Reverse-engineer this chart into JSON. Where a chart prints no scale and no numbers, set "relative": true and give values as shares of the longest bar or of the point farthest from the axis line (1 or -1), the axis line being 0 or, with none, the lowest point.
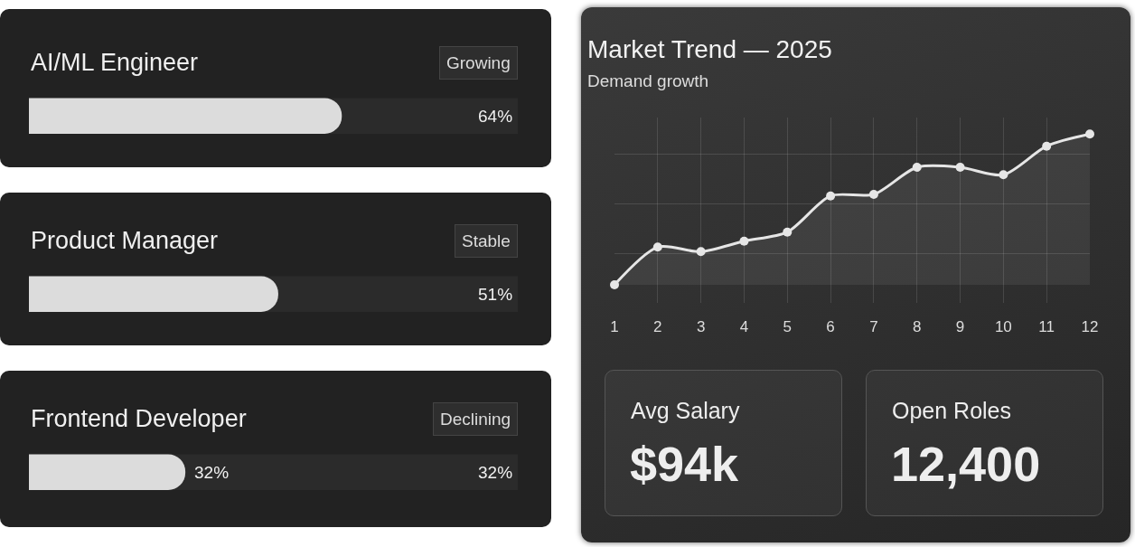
{
  "chart_data": [
    {
      "type": "bar",
      "orientation": "horizontal",
      "categories": [
        "AI/ML Engineer",
        "Product Manager",
        "Frontend Developer"
      ],
      "values": [
        64,
        51,
        32
      ],
      "value_labels": [
        "64%",
        "51%",
        "32%"
      ],
      "color": "#dcdcdc",
      "xlim": [
        0,
        100
      ],
      "tick_labels": "y",
      "annotations": [
        "Growing",
        "Stable",
        "Declining",
        "32%"
      ]
    },
    {
      "type": "area",
      "title": "Market Trend — 2025",
      "subtitle": "Demand growth",
      "x": [
        1,
        2,
        3,
        4,
        5,
        6,
        7,
        8,
        9,
        10,
        11,
        12
      ],
      "values": [
        0,
        0.25,
        0.22,
        0.29,
        0.35,
        0.59,
        0.6,
        0.78,
        0.78,
        0.73,
        0.92,
        1
      ],
      "relative": true,
      "color": "#e6e6e6",
      "xlim": [
        1,
        12
      ],
      "xticks": [
        1,
        2,
        3,
        4,
        5,
        6,
        7,
        8,
        9,
        10,
        11,
        12
      ],
      "grid": true,
      "marker": "circle",
      "line_style": "solid"
    },
    {
      "type": "other",
      "annotations": [
        "Avg Salary",
        "$94k",
        "Open Roles",
        "12,400"
      ]
    }
  ]
}
